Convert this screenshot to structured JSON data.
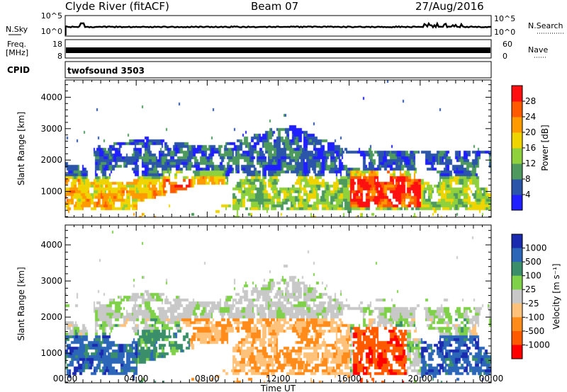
{
  "header": {
    "station": "Clyde River (fitACF)",
    "beam": "Beam 07",
    "date": "27/Aug/2016"
  },
  "noise_panel": {
    "left_label": "N.Sky",
    "right_label": "N.Search",
    "left_ticks": [
      "10^5",
      "10^0"
    ],
    "right_ticks": [
      "10^5",
      "10^0"
    ]
  },
  "freq_panel": {
    "left_label_line1": "Freq.",
    "left_label_line2": "[MHz]",
    "right_label": "Nave",
    "left_ticks": [
      "18",
      "8"
    ],
    "right_ticks": [
      "60",
      "0"
    ]
  },
  "cpid_panel": {
    "label": "CPID",
    "value": "twofsound 3503"
  },
  "colors": {
    "power_scale": [
      "#1f1fff",
      "#2b55a8",
      "#4e9a5e",
      "#8ed13c",
      "#f0d400",
      "#ff9a00",
      "#ff5a00",
      "#ff1010"
    ],
    "velocity_scale": [
      "#ff0000",
      "#ff5a00",
      "#ff8c1a",
      "#ffc27a",
      "#c8c8c8",
      "#7fd14a",
      "#3a8f6a",
      "#2b66b8",
      "#1a2bb0"
    ]
  },
  "chart_data": [
    {
      "type": "heatmap",
      "quantity": "Power",
      "ylabel": "Slant Range [km]",
      "xlabel": "",
      "x_ticks": [
        "00:00",
        "04:00",
        "08:00",
        "12:00",
        "16:00",
        "20:00",
        "00:00"
      ],
      "y_ticks": [
        1000,
        2000,
        3000,
        4000
      ],
      "ylim": [
        180,
        4550
      ],
      "colorbar": {
        "label": "Power [dB]",
        "ticks": [
          "4",
          "8",
          "12",
          "16",
          "20",
          "24",
          "28"
        ],
        "range": [
          0,
          32
        ]
      }
    },
    {
      "type": "heatmap",
      "quantity": "Velocity",
      "ylabel": "Slant Range [km]",
      "xlabel": "Time UT",
      "x_ticks": [
        "00:00",
        "04:00",
        "08:00",
        "12:00",
        "16:00",
        "20:00",
        "00:00"
      ],
      "y_ticks": [
        1000,
        2000,
        3000,
        4000
      ],
      "ylim": [
        180,
        4550
      ],
      "colorbar": {
        "label": "Velocity [m s⁻¹]",
        "ticks": [
          "1000",
          "500",
          "100",
          "25",
          "-25",
          "-100",
          "-500",
          "-1000"
        ]
      }
    }
  ]
}
